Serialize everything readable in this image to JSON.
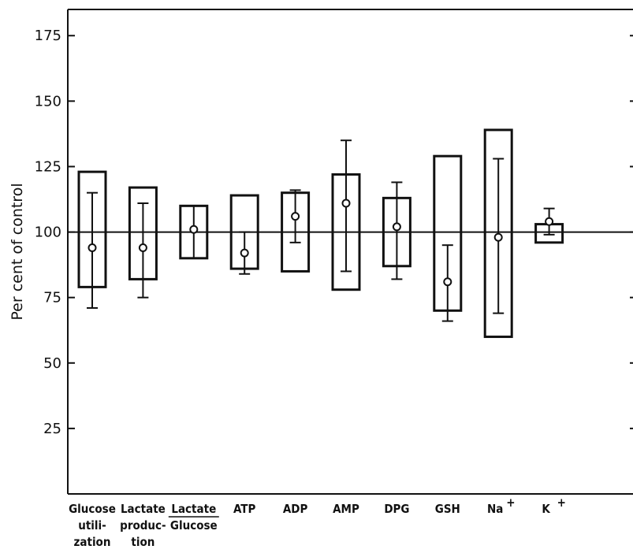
{
  "chart_data": {
    "type": "box",
    "ylabel": "Per cent of control",
    "xlabel": "",
    "ylim": [
      0,
      185
    ],
    "yticks": [
      25,
      50,
      75,
      100,
      125,
      150,
      175
    ],
    "reference_line": 100,
    "categories": [
      {
        "lines": [
          "Glucose",
          "utili-",
          "zation"
        ],
        "range": [
          79,
          123
        ],
        "mean": 94,
        "err": [
          71,
          115
        ]
      },
      {
        "lines": [
          "Lactate",
          "produc-",
          "tion"
        ],
        "range": [
          82,
          117
        ],
        "mean": 94,
        "err": [
          75,
          111
        ]
      },
      {
        "lines": [
          "Lactate",
          "Glucose"
        ],
        "fraction": true,
        "range": [
          90,
          110
        ],
        "mean": 101,
        "err": [
          90,
          110
        ]
      },
      {
        "lines": [
          "ATP"
        ],
        "range": [
          86,
          114
        ],
        "mean": 92,
        "err": [
          84,
          100
        ]
      },
      {
        "lines": [
          "ADP"
        ],
        "range": [
          85,
          115
        ],
        "mean": 106,
        "err": [
          96,
          116
        ]
      },
      {
        "lines": [
          "AMP"
        ],
        "range": [
          78,
          122
        ],
        "mean": 111,
        "err": [
          85,
          135
        ]
      },
      {
        "lines": [
          "DPG"
        ],
        "range": [
          87,
          113
        ],
        "mean": 102,
        "err": [
          82,
          119
        ]
      },
      {
        "lines": [
          "GSH"
        ],
        "range": [
          70,
          129
        ],
        "mean": 81,
        "err": [
          66,
          95
        ]
      },
      {
        "lines": [
          "Na",
          "+"
        ],
        "superscript": true,
        "range": [
          60,
          139
        ],
        "mean": 98,
        "err": [
          69,
          128
        ]
      },
      {
        "lines": [
          "K",
          "+"
        ],
        "superscript": true,
        "range": [
          96,
          103
        ],
        "mean": 104,
        "err": [
          99,
          109
        ]
      }
    ]
  }
}
